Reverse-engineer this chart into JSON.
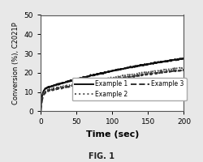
{
  "title": "",
  "xlabel": "Time (sec)",
  "ylabel": "Conversion (%), C2021P",
  "fig_label": "FIG. 1",
  "xlim": [
    0,
    200
  ],
  "ylim": [
    0,
    50
  ],
  "xticks": [
    0,
    50,
    100,
    150,
    200
  ],
  "yticks": [
    0,
    10,
    20,
    30,
    40,
    50
  ],
  "background_color": "#ffffff",
  "fig_background": "#e8e8e8",
  "curves": [
    {
      "name": "Example 1",
      "color": "#111111",
      "linestyle": "solid",
      "linewidth": 1.4,
      "A": 40.5,
      "k1": 0.55,
      "k2": 0.004
    },
    {
      "name": "Example 2",
      "color": "#555555",
      "linestyle": "dotted",
      "linewidth": 1.4,
      "A": 37.5,
      "k1": 0.45,
      "k2": 0.003
    },
    {
      "name": "Example 3",
      "color": "#333333",
      "linestyle": "dashed",
      "linewidth": 1.4,
      "A": 35.5,
      "k1": 0.4,
      "k2": 0.003
    }
  ],
  "legend_fontsize": 5.5,
  "xlabel_fontsize": 8.0,
  "ylabel_fontsize": 6.0,
  "tick_fontsize": 6.5
}
